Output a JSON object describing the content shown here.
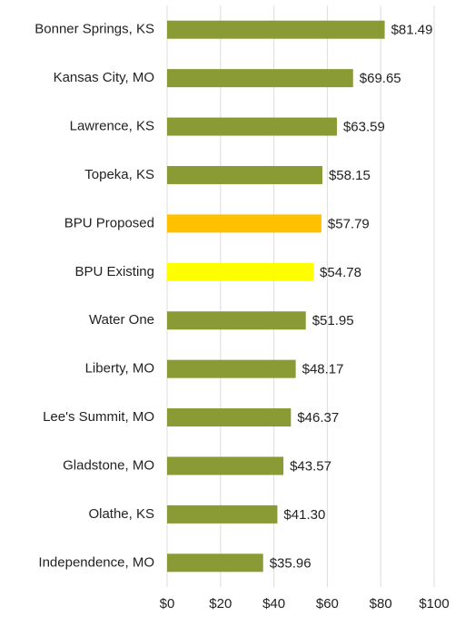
{
  "chart_data": {
    "type": "bar",
    "orientation": "horizontal",
    "categories": [
      "Bonner Springs, KS",
      "Kansas City, MO",
      "Lawrence, KS",
      "Topeka, KS",
      "BPU Proposed",
      "BPU Existing",
      "Water One",
      "Liberty, MO",
      "Lee's Summit, MO",
      "Gladstone, MO",
      "Olathe, KS",
      "Independence, MO"
    ],
    "values": [
      81.49,
      69.65,
      63.59,
      58.15,
      57.79,
      54.78,
      51.95,
      48.17,
      46.37,
      43.57,
      41.3,
      35.96
    ],
    "value_labels": [
      "$81.49",
      "$69.65",
      "$63.59",
      "$58.15",
      "$57.79",
      "$54.78",
      "$51.95",
      "$48.17",
      "$46.37",
      "$43.57",
      "$41.30",
      "$35.96"
    ],
    "colors": [
      "#8a9a34",
      "#8a9a34",
      "#8a9a34",
      "#8a9a34",
      "#ffc000",
      "#ffff00",
      "#8a9a34",
      "#8a9a34",
      "#8a9a34",
      "#8a9a34",
      "#8a9a34",
      "#8a9a34"
    ],
    "xlim": [
      0,
      100
    ],
    "xticks": [
      {
        "value": 0,
        "label": "$0"
      },
      {
        "value": 20,
        "label": "$20"
      },
      {
        "value": 40,
        "label": "$40"
      },
      {
        "value": 60,
        "label": "$60"
      },
      {
        "value": 80,
        "label": "$80"
      },
      {
        "value": 100,
        "label": "$100"
      }
    ],
    "grid": true
  }
}
